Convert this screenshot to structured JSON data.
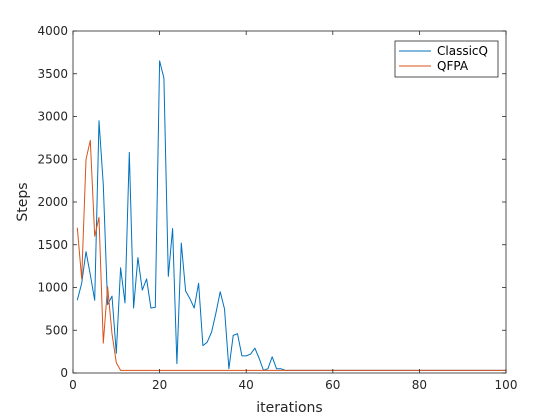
{
  "chart_data": {
    "type": "line",
    "title": "",
    "xlabel": "iterations",
    "ylabel": "Steps",
    "xlim": [
      0,
      100
    ],
    "ylim": [
      0,
      4000
    ],
    "xticks": [
      0,
      20,
      40,
      60,
      80,
      100
    ],
    "yticks": [
      0,
      500,
      1000,
      1500,
      2000,
      2500,
      3000,
      3500,
      4000
    ],
    "grid": false,
    "legend_position": "top-right",
    "series": [
      {
        "name": "ClassicQ",
        "color": "#0072BD",
        "x": [
          1,
          2,
          3,
          4,
          5,
          6,
          7,
          8,
          9,
          10,
          11,
          12,
          13,
          14,
          15,
          16,
          17,
          18,
          19,
          20,
          21,
          22,
          23,
          24,
          25,
          26,
          27,
          28,
          29,
          30,
          31,
          32,
          33,
          34,
          35,
          36,
          37,
          38,
          39,
          40,
          41,
          42,
          43,
          44,
          45,
          46,
          47,
          48,
          49,
          50,
          51,
          52,
          53,
          54,
          55,
          56,
          57,
          58,
          59,
          60,
          61,
          62,
          63,
          64,
          65,
          66,
          67,
          68,
          69,
          70,
          71,
          72,
          73,
          74,
          75,
          76,
          77,
          78,
          79,
          80,
          81,
          82,
          83,
          84,
          85,
          86,
          87,
          88,
          89,
          90,
          91,
          92,
          93,
          94,
          95,
          96,
          97,
          98,
          99,
          100
        ],
        "y": [
          850,
          1050,
          1420,
          1150,
          850,
          2950,
          2200,
          800,
          900,
          230,
          1230,
          820,
          2580,
          760,
          1350,
          970,
          1100,
          760,
          770,
          3650,
          3450,
          1130,
          1690,
          110,
          1520,
          960,
          870,
          760,
          1050,
          320,
          360,
          480,
          700,
          950,
          750,
          50,
          440,
          460,
          200,
          200,
          220,
          290,
          170,
          30,
          50,
          190,
          50,
          50,
          30,
          30,
          30,
          30,
          30,
          30,
          30,
          30,
          30,
          30,
          30,
          30,
          30,
          30,
          30,
          30,
          30,
          30,
          30,
          30,
          30,
          30,
          30,
          30,
          30,
          30,
          30,
          30,
          30,
          30,
          30,
          30,
          30,
          30,
          30,
          30,
          30,
          30,
          30,
          30,
          30,
          30,
          30,
          30,
          30,
          30,
          30,
          30,
          30,
          30,
          30,
          30
        ]
      },
      {
        "name": "QFPA",
        "color": "#D95319",
        "x": [
          1,
          2,
          3,
          4,
          5,
          6,
          7,
          8,
          9,
          10,
          11,
          12,
          13,
          14,
          15,
          16,
          17,
          18,
          19,
          20,
          21,
          22,
          23,
          24,
          25,
          26,
          27,
          28,
          29,
          30,
          31,
          32,
          33,
          34,
          35,
          36,
          37,
          38,
          39,
          40,
          41,
          42,
          43,
          44,
          45,
          46,
          47,
          48,
          49,
          50,
          51,
          52,
          53,
          54,
          55,
          56,
          57,
          58,
          59,
          60,
          61,
          62,
          63,
          64,
          65,
          66,
          67,
          68,
          69,
          70,
          71,
          72,
          73,
          74,
          75,
          76,
          77,
          78,
          79,
          80,
          81,
          82,
          83,
          84,
          85,
          86,
          87,
          88,
          89,
          90,
          91,
          92,
          93,
          94,
          95,
          96,
          97,
          98,
          99,
          100
        ],
        "y": [
          1700,
          1100,
          2500,
          2720,
          1600,
          1820,
          350,
          1010,
          460,
          120,
          30,
          30,
          30,
          30,
          30,
          30,
          30,
          30,
          30,
          30,
          30,
          30,
          30,
          30,
          30,
          30,
          30,
          30,
          30,
          30,
          30,
          30,
          30,
          30,
          30,
          30,
          30,
          30,
          30,
          30,
          30,
          30,
          30,
          30,
          30,
          30,
          30,
          30,
          30,
          30,
          30,
          30,
          30,
          30,
          30,
          30,
          30,
          30,
          30,
          30,
          30,
          30,
          30,
          30,
          30,
          30,
          30,
          30,
          30,
          30,
          30,
          30,
          30,
          30,
          30,
          30,
          30,
          30,
          30,
          30,
          30,
          30,
          30,
          30,
          30,
          30,
          30,
          30,
          30,
          30,
          30,
          30,
          30,
          30,
          30,
          30,
          30,
          30,
          30,
          30
        ]
      }
    ]
  }
}
